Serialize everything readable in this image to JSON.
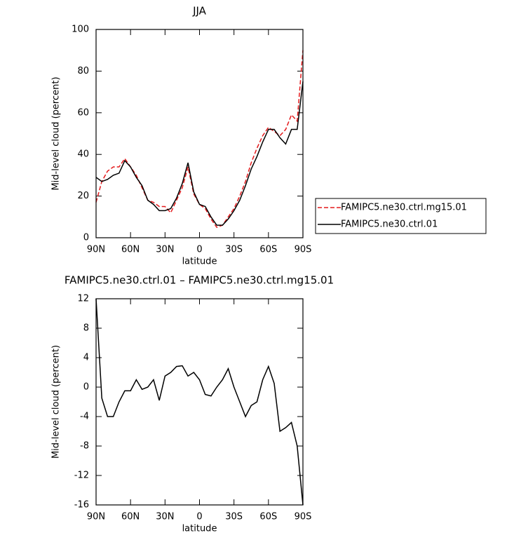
{
  "chart_data": [
    {
      "type": "line",
      "title": "JJA",
      "x_label": "latitude",
      "y_label": "Mid-level cloud (percent)",
      "x": [
        90,
        85,
        80,
        75,
        70,
        65,
        60,
        55,
        50,
        45,
        40,
        35,
        30,
        25,
        20,
        15,
        10,
        5,
        0,
        -5,
        -10,
        -15,
        -20,
        -25,
        -30,
        -35,
        -40,
        -45,
        -50,
        -55,
        -60,
        -65,
        -70,
        -75,
        -80,
        -85,
        -90
      ],
      "series": [
        {
          "name": "FAMIPC5.ne30.ctrl.mg15.01",
          "color": "#e41a1c",
          "linestyle": "dashed",
          "values": [
            17,
            27,
            32,
            34,
            34,
            38,
            34,
            30,
            24,
            18,
            17,
            15,
            15,
            12,
            18,
            24,
            34,
            21,
            16,
            14,
            9,
            5,
            6,
            10,
            14,
            20,
            27,
            36,
            43,
            49,
            53,
            51,
            49,
            52,
            59,
            56,
            90
          ]
        },
        {
          "name": "FAMIPC5.ne30.ctrl.01",
          "color": "#000000",
          "linestyle": "solid",
          "values": [
            29,
            27,
            28,
            30,
            31,
            37,
            34,
            29,
            25,
            18,
            16,
            13,
            13,
            14,
            19,
            26,
            36,
            22,
            16,
            15,
            10,
            6,
            6,
            9,
            13,
            18,
            25,
            33,
            39,
            46,
            52,
            52,
            48,
            45,
            52,
            52,
            75
          ]
        }
      ],
      "xlim": [
        90,
        -90
      ],
      "xticks": [
        {
          "value": 90,
          "label": "90N"
        },
        {
          "value": 60,
          "label": "60N"
        },
        {
          "value": 30,
          "label": "30N"
        },
        0,
        {
          "value": -30,
          "label": "30S"
        },
        {
          "value": -60,
          "label": "60S"
        },
        {
          "value": -90,
          "label": "90S"
        }
      ],
      "ylim": [
        0,
        100
      ],
      "yticks": [
        0,
        20,
        40,
        60,
        80,
        100
      ],
      "legend": "right"
    },
    {
      "type": "line",
      "title": "FAMIPC5.ne30.ctrl.01 – FAMIPC5.ne30.ctrl.mg15.01",
      "x_label": "latitude",
      "y_label": "Mid-level cloud (percent)",
      "x": [
        90,
        85,
        80,
        75,
        70,
        65,
        60,
        55,
        50,
        45,
        40,
        35,
        30,
        25,
        20,
        15,
        10,
        5,
        0,
        -5,
        -10,
        -15,
        -20,
        -25,
        -30,
        -35,
        -40,
        -45,
        -50,
        -55,
        -60,
        -65,
        -70,
        -75,
        -80,
        -85,
        -90
      ],
      "series": [
        {
          "color": "#000000",
          "linestyle": "solid",
          "values": [
            12,
            -1.5,
            -4,
            -4,
            -2,
            -0.5,
            -0.5,
            1,
            -0.3,
            0,
            1,
            -1.8,
            1.5,
            2,
            2.8,
            2.9,
            1.5,
            2,
            1,
            -1,
            -1.2,
            0,
            1,
            2.5,
            0,
            -2,
            -4,
            -2.5,
            -2,
            1,
            2.8,
            0.5,
            -6,
            -5.5,
            -4.8,
            -8,
            -16
          ]
        }
      ],
      "xlim": [
        90,
        -90
      ],
      "xticks": [
        {
          "value": 90,
          "label": "90N"
        },
        {
          "value": 60,
          "label": "60N"
        },
        {
          "value": 30,
          "label": "30N"
        },
        0,
        {
          "value": -30,
          "label": "30S"
        },
        {
          "value": -60,
          "label": "60S"
        },
        {
          "value": -90,
          "label": "90S"
        }
      ],
      "ylim": [
        -16,
        12
      ],
      "yticks": [
        -16,
        -12,
        -8,
        -4,
        0,
        4,
        8,
        12
      ]
    }
  ]
}
